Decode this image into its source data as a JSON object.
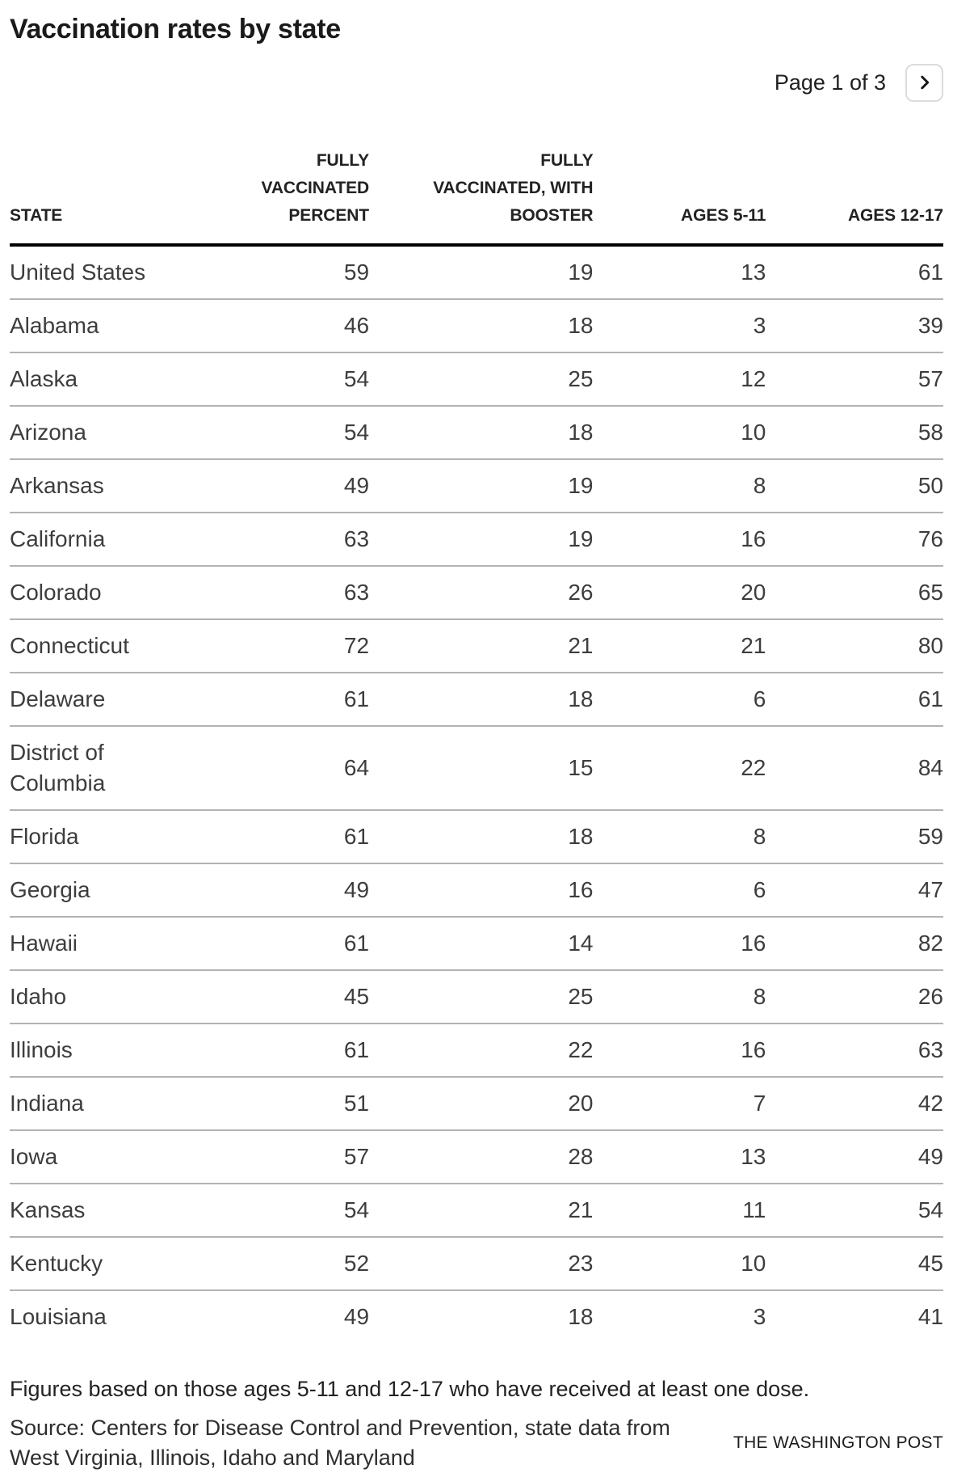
{
  "header": {
    "title": "Vaccination rates by state"
  },
  "pagination": {
    "label": "Page 1 of 3",
    "current_page": 1,
    "total_pages": 3,
    "next_icon": "chevron-right"
  },
  "table": {
    "columns": [
      "STATE",
      "FULLY\nVACCINATED\nPERCENT",
      "FULLY\nVACCINATED, WITH\nBOOSTER",
      "AGES 5-11",
      "AGES 12-17"
    ],
    "rows": [
      {
        "state": "United States",
        "values": [
          "59",
          "19",
          "13",
          "61"
        ]
      },
      {
        "state": "Alabama",
        "values": [
          "46",
          "18",
          "3",
          "39"
        ]
      },
      {
        "state": "Alaska",
        "values": [
          "54",
          "25",
          "12",
          "57"
        ]
      },
      {
        "state": "Arizona",
        "values": [
          "54",
          "18",
          "10",
          "58"
        ]
      },
      {
        "state": "Arkansas",
        "values": [
          "49",
          "19",
          "8",
          "50"
        ]
      },
      {
        "state": "California",
        "values": [
          "63",
          "19",
          "16",
          "76"
        ]
      },
      {
        "state": "Colorado",
        "values": [
          "63",
          "26",
          "20",
          "65"
        ]
      },
      {
        "state": "Connecticut",
        "values": [
          "72",
          "21",
          "21",
          "80"
        ]
      },
      {
        "state": "Delaware",
        "values": [
          "61",
          "18",
          "6",
          "61"
        ]
      },
      {
        "state": "District of\nColumbia",
        "values": [
          "64",
          "15",
          "22",
          "84"
        ]
      },
      {
        "state": "Florida",
        "values": [
          "61",
          "18",
          "8",
          "59"
        ]
      },
      {
        "state": "Georgia",
        "values": [
          "49",
          "16",
          "6",
          "47"
        ]
      },
      {
        "state": "Hawaii",
        "values": [
          "61",
          "14",
          "16",
          "82"
        ]
      },
      {
        "state": "Idaho",
        "values": [
          "45",
          "25",
          "8",
          "26"
        ]
      },
      {
        "state": "Illinois",
        "values": [
          "61",
          "22",
          "16",
          "63"
        ]
      },
      {
        "state": "Indiana",
        "values": [
          "51",
          "20",
          "7",
          "42"
        ]
      },
      {
        "state": "Iowa",
        "values": [
          "57",
          "28",
          "13",
          "49"
        ]
      },
      {
        "state": "Kansas",
        "values": [
          "54",
          "21",
          "11",
          "54"
        ]
      },
      {
        "state": "Kentucky",
        "values": [
          "52",
          "23",
          "10",
          "45"
        ]
      },
      {
        "state": "Louisiana",
        "values": [
          "49",
          "18",
          "3",
          "41"
        ]
      }
    ]
  },
  "footer": {
    "note": "Figures based on those ages 5-11 and 12-17 who have received at least one dose.",
    "source": "Source: Centers for Disease Control and Prevention, state data from West Virginia, Illinois, Idaho and Maryland",
    "credit": "THE WASHINGTON POST"
  },
  "colors": {
    "title_text": "#1a1a1a",
    "body_text": "#3d3d3d",
    "header_rule": "#000000",
    "row_separator": "#b3b3b3",
    "button_border": "#dcdcdc",
    "background": "#ffffff"
  },
  "chart_data": {
    "type": "table",
    "title": "Vaccination rates by state",
    "columns": [
      "STATE",
      "FULLY VACCINATED PERCENT",
      "FULLY VACCINATED, WITH BOOSTER",
      "AGES 5-11",
      "AGES 12-17"
    ],
    "rows": [
      [
        "United States",
        59,
        19,
        13,
        61
      ],
      [
        "Alabama",
        46,
        18,
        3,
        39
      ],
      [
        "Alaska",
        54,
        25,
        12,
        57
      ],
      [
        "Arizona",
        54,
        18,
        10,
        58
      ],
      [
        "Arkansas",
        49,
        19,
        8,
        50
      ],
      [
        "California",
        63,
        19,
        16,
        76
      ],
      [
        "Colorado",
        63,
        26,
        20,
        65
      ],
      [
        "Connecticut",
        72,
        21,
        21,
        80
      ],
      [
        "Delaware",
        61,
        18,
        6,
        61
      ],
      [
        "District of Columbia",
        64,
        15,
        22,
        84
      ],
      [
        "Florida",
        61,
        18,
        8,
        59
      ],
      [
        "Georgia",
        49,
        16,
        6,
        47
      ],
      [
        "Hawaii",
        61,
        14,
        16,
        82
      ],
      [
        "Idaho",
        45,
        25,
        8,
        26
      ],
      [
        "Illinois",
        61,
        22,
        16,
        63
      ],
      [
        "Indiana",
        51,
        20,
        7,
        42
      ],
      [
        "Iowa",
        57,
        28,
        13,
        49
      ],
      [
        "Kansas",
        54,
        21,
        11,
        54
      ],
      [
        "Kentucky",
        52,
        23,
        10,
        45
      ],
      [
        "Louisiana",
        49,
        18,
        3,
        41
      ]
    ],
    "pagination": "Page 1 of 3",
    "note": "Figures based on those ages 5-11 and 12-17 who have received at least one dose.",
    "source": "Source: Centers for Disease Control and Prevention, state data from West Virginia, Illinois, Idaho and Maryland",
    "credit": "THE WASHINGTON POST"
  }
}
